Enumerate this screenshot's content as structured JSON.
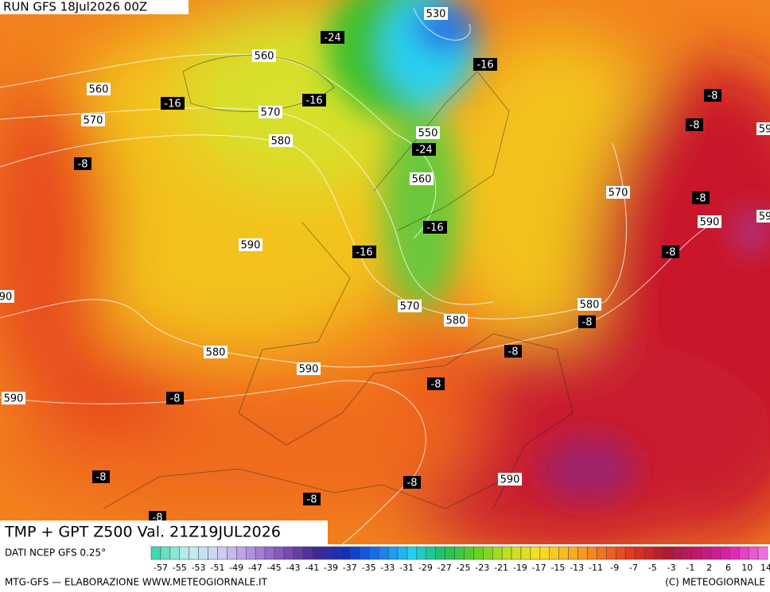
{
  "header": {
    "run": "RUN GFS 18Jul2026 00Z"
  },
  "map": {
    "title": "TMP + GPT Z500 Val. 21Z19JUL2026",
    "labels": [
      "530",
      "-24",
      "560",
      "-16",
      "560",
      "-16",
      "-16",
      "-8",
      "570",
      "570",
      "-8",
      "550",
      "580",
      "-24",
      "-8",
      "560",
      "570",
      "-8",
      "590",
      "-16",
      "590",
      "-16",
      "-8",
      "90",
      "570",
      "580",
      "580",
      "-8",
      "-8",
      "580",
      "590",
      "-8",
      "590",
      "-8",
      "-8",
      "-8",
      "590",
      "-8",
      "-8",
      "59",
      "59"
    ]
  },
  "legend": {
    "source": "DATI NCEP GFS 0.25°",
    "ticks": [
      "-57",
      "-55",
      "-53",
      "-51",
      "-49",
      "-47",
      "-45",
      "-43",
      "-41",
      "-39",
      "-37",
      "-35",
      "-33",
      "-31",
      "-29",
      "-27",
      "-25",
      "-23",
      "-21",
      "-19",
      "-17",
      "-15",
      "-13",
      "-11",
      "-9",
      "-7",
      "-5",
      "-3",
      "-1",
      "2",
      "6",
      "10",
      "14"
    ]
  },
  "footer": {
    "left": "MTG-GFS — ELABORAZIONE WWW.METEOGIORNALE.IT",
    "right": "(C) METEOGIORNALE"
  }
}
